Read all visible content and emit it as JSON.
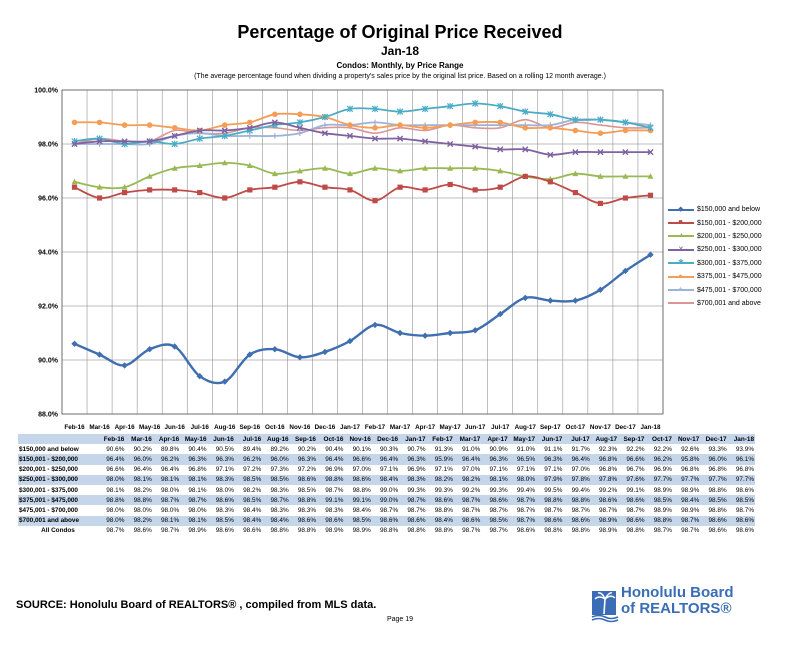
{
  "title": "Percentage of Original Price Received",
  "subtitle": "Jan-18",
  "subtitle2": "Condos: Monthly, by Price Range",
  "note": "(The average percentage found when dividing a property's sales price by the original list price. Based on a rolling 12 month average.)",
  "source": "SOURCE:  Honolulu Board of REALTORS® , compiled from MLS data.",
  "page_number": "Page 19",
  "logo": {
    "line1": "Honolulu Board",
    "line2": "of REALTORS®"
  },
  "colors": {
    "grid": "#7f7f7f",
    "row_shade": "#c5d5ea",
    "logo_blue": "#3a6db5"
  },
  "chart_data": {
    "type": "line",
    "title": "Percentage of Original Price Received",
    "ylim": [
      88.0,
      100.0
    ],
    "y_ticks": [
      "88.0%",
      "90.0%",
      "92.0%",
      "94.0%",
      "96.0%",
      "98.0%",
      "100.0%"
    ],
    "y_tick_values": [
      88,
      90,
      92,
      94,
      96,
      98,
      100
    ],
    "grid": true,
    "legend_position": "right",
    "categories": [
      "Feb-16",
      "Mar-16",
      "Apr-16",
      "May-16",
      "Jun-16",
      "Jul-16",
      "Aug-16",
      "Sep-16",
      "Oct-16",
      "Nov-16",
      "Dec-16",
      "Jan-17",
      "Feb-17",
      "Mar-17",
      "Apr-17",
      "May-17",
      "Jun-17",
      "Jul-17",
      "Aug-17",
      "Sep-17",
      "Oct-17",
      "Nov-17",
      "Dec-17",
      "Jan-18"
    ],
    "series": [
      {
        "name": "$150,000 and below",
        "color": "#3f6fb0",
        "marker": "diamond",
        "width": 2.4,
        "values": [
          90.6,
          90.2,
          89.8,
          90.4,
          90.5,
          89.4,
          89.2,
          90.2,
          90.4,
          90.1,
          90.3,
          90.7,
          91.3,
          91.0,
          90.9,
          91.0,
          91.1,
          91.7,
          92.3,
          92.2,
          92.2,
          92.6,
          93.3,
          93.9
        ]
      },
      {
        "name": "$150,001 - $200,000",
        "color": "#be4b48",
        "marker": "square",
        "width": 1.8,
        "values": [
          96.4,
          96.0,
          96.2,
          96.3,
          96.3,
          96.2,
          96.0,
          96.3,
          96.4,
          96.6,
          96.4,
          96.3,
          95.9,
          96.4,
          96.3,
          96.5,
          96.3,
          96.4,
          96.8,
          96.6,
          96.2,
          95.8,
          96.0,
          96.1
        ]
      },
      {
        "name": "$200,001 - $250,000",
        "color": "#98b954",
        "marker": "triangle",
        "width": 1.8,
        "values": [
          96.6,
          96.4,
          96.4,
          96.8,
          97.1,
          97.2,
          97.3,
          97.2,
          96.9,
          97.0,
          97.1,
          96.9,
          97.1,
          97.0,
          97.1,
          97.1,
          97.1,
          97.0,
          96.8,
          96.7,
          96.9,
          96.8,
          96.8,
          96.8
        ]
      },
      {
        "name": "$250,001 - $300,000",
        "color": "#7e62a1",
        "marker": "x",
        "width": 1.8,
        "values": [
          98.0,
          98.1,
          98.1,
          98.1,
          98.3,
          98.5,
          98.5,
          98.6,
          98.8,
          98.6,
          98.4,
          98.3,
          98.2,
          98.2,
          98.1,
          98.0,
          97.9,
          97.8,
          97.8,
          97.6,
          97.7,
          97.7,
          97.7,
          97.7
        ]
      },
      {
        "name": "$300,001 - $375,000",
        "color": "#4bacc6",
        "marker": "star",
        "width": 1.8,
        "values": [
          98.1,
          98.2,
          98.0,
          98.1,
          98.0,
          98.2,
          98.3,
          98.5,
          98.7,
          98.8,
          99.0,
          99.3,
          99.3,
          99.2,
          99.3,
          99.4,
          99.5,
          99.4,
          99.2,
          99.1,
          98.9,
          98.9,
          98.8,
          98.6
        ]
      },
      {
        "name": "$375,001 - $475,000",
        "color": "#f59d56",
        "marker": "circle",
        "width": 1.8,
        "values": [
          98.8,
          98.8,
          98.7,
          98.7,
          98.6,
          98.5,
          98.7,
          98.8,
          99.1,
          99.1,
          99.0,
          98.7,
          98.6,
          98.7,
          98.6,
          98.7,
          98.8,
          98.8,
          98.6,
          98.6,
          98.5,
          98.4,
          98.5,
          98.5
        ]
      },
      {
        "name": "$475,001 - $700,000",
        "color": "#9bb3d8",
        "marker": "plus",
        "width": 1.8,
        "values": [
          98.0,
          98.0,
          98.0,
          98.0,
          98.3,
          98.4,
          98.3,
          98.3,
          98.3,
          98.4,
          98.7,
          98.7,
          98.8,
          98.7,
          98.7,
          98.7,
          98.7,
          98.7,
          98.7,
          98.7,
          98.9,
          98.9,
          98.8,
          98.7
        ]
      },
      {
        "name": "$700,001 and above",
        "color": "#d99694",
        "marker": "none",
        "width": 1.6,
        "values": [
          98.0,
          98.2,
          98.1,
          98.1,
          98.5,
          98.4,
          98.4,
          98.6,
          98.6,
          98.5,
          98.6,
          98.6,
          98.4,
          98.6,
          98.5,
          98.7,
          98.6,
          98.6,
          98.9,
          98.6,
          98.8,
          98.7,
          98.6,
          98.6
        ]
      }
    ]
  },
  "table": {
    "header": [
      "",
      "Feb-16",
      "Mar-16",
      "Apr-16",
      "May-16",
      "Jun-16",
      "Jul-16",
      "Aug-16",
      "Sep-16",
      "Oct-16",
      "Nov-16",
      "Dec-16",
      "Jan-17",
      "Feb-17",
      "Mar-17",
      "Apr-17",
      "May-17",
      "Jun-17",
      "Jul-17",
      "Aug-17",
      "Sep-17",
      "Oct-17",
      "Nov-17",
      "Dec-17",
      "Jan-18"
    ],
    "rows": [
      {
        "label": "$150,000 and below",
        "values": [
          "90.6%",
          "90.2%",
          "89.8%",
          "90.4%",
          "90.5%",
          "89.4%",
          "89.2%",
          "90.2%",
          "90.4%",
          "90.1%",
          "90.3%",
          "90.7%",
          "91.3%",
          "91.0%",
          "90.9%",
          "91.0%",
          "91.1%",
          "91.7%",
          "92.3%",
          "92.2%",
          "92.2%",
          "92.6%",
          "93.3%",
          "93.9%"
        ]
      },
      {
        "label": "$150,001 - $200,000",
        "values": [
          "96.4%",
          "96.0%",
          "96.2%",
          "96.3%",
          "96.3%",
          "96.2%",
          "96.0%",
          "96.3%",
          "96.4%",
          "96.6%",
          "96.4%",
          "96.3%",
          "95.9%",
          "96.4%",
          "96.3%",
          "96.5%",
          "96.3%",
          "96.4%",
          "96.8%",
          "96.6%",
          "96.2%",
          "95.8%",
          "96.0%",
          "96.1%"
        ]
      },
      {
        "label": "$200,001 - $250,000",
        "values": [
          "96.6%",
          "96.4%",
          "96.4%",
          "96.8%",
          "97.1%",
          "97.2%",
          "97.3%",
          "97.2%",
          "96.9%",
          "97.0%",
          "97.1%",
          "96.9%",
          "97.1%",
          "97.0%",
          "97.1%",
          "97.1%",
          "97.1%",
          "97.0%",
          "96.8%",
          "96.7%",
          "96.9%",
          "96.8%",
          "96.8%",
          "96.8%"
        ]
      },
      {
        "label": "$250,001 - $300,000",
        "values": [
          "98.0%",
          "98.1%",
          "98.1%",
          "98.1%",
          "98.3%",
          "98.5%",
          "98.5%",
          "98.6%",
          "98.8%",
          "98.6%",
          "98.4%",
          "98.3%",
          "98.2%",
          "98.2%",
          "98.1%",
          "98.0%",
          "97.9%",
          "97.8%",
          "97.8%",
          "97.6%",
          "97.7%",
          "97.7%",
          "97.7%",
          "97.7%"
        ]
      },
      {
        "label": "$300,001 - $375,000",
        "values": [
          "98.1%",
          "98.2%",
          "98.0%",
          "98.1%",
          "98.0%",
          "98.2%",
          "98.3%",
          "98.5%",
          "98.7%",
          "98.8%",
          "99.0%",
          "99.3%",
          "99.3%",
          "99.2%",
          "99.3%",
          "99.4%",
          "99.5%",
          "99.4%",
          "99.2%",
          "99.1%",
          "98.9%",
          "98.9%",
          "98.8%",
          "98.6%"
        ]
      },
      {
        "label": "$375,001 - $475,000",
        "values": [
          "98.8%",
          "98.8%",
          "98.7%",
          "98.7%",
          "98.6%",
          "98.5%",
          "98.7%",
          "98.8%",
          "99.1%",
          "99.1%",
          "99.0%",
          "98.7%",
          "98.6%",
          "98.7%",
          "98.6%",
          "98.7%",
          "98.8%",
          "98.8%",
          "98.6%",
          "98.6%",
          "98.5%",
          "98.4%",
          "98.5%",
          "98.5%"
        ]
      },
      {
        "label": "$475,001 - $700,000",
        "values": [
          "98.0%",
          "98.0%",
          "98.0%",
          "98.0%",
          "98.3%",
          "98.4%",
          "98.3%",
          "98.3%",
          "98.3%",
          "98.4%",
          "98.7%",
          "98.7%",
          "98.8%",
          "98.7%",
          "98.7%",
          "98.7%",
          "98.7%",
          "98.7%",
          "98.7%",
          "98.7%",
          "98.9%",
          "98.9%",
          "98.8%",
          "98.7%"
        ]
      },
      {
        "label": "$700,001 and above",
        "values": [
          "98.0%",
          "98.2%",
          "98.1%",
          "98.1%",
          "98.5%",
          "98.4%",
          "98.4%",
          "98.6%",
          "98.6%",
          "98.5%",
          "98.6%",
          "98.6%",
          "98.4%",
          "98.6%",
          "98.5%",
          "98.7%",
          "98.6%",
          "98.6%",
          "98.9%",
          "98.6%",
          "98.8%",
          "98.7%",
          "98.6%",
          "98.6%"
        ]
      },
      {
        "label": "All Condos",
        "values": [
          "98.7%",
          "98.6%",
          "98.7%",
          "98.9%",
          "98.6%",
          "98.6%",
          "98.8%",
          "98.8%",
          "98.9%",
          "98.9%",
          "98.8%",
          "98.8%",
          "98.8%",
          "98.7%",
          "98.7%",
          "98.6%",
          "98.8%",
          "98.8%",
          "98.9%",
          "98.8%",
          "98.7%",
          "98.7%",
          "98.6%",
          "98.6%"
        ]
      }
    ]
  }
}
